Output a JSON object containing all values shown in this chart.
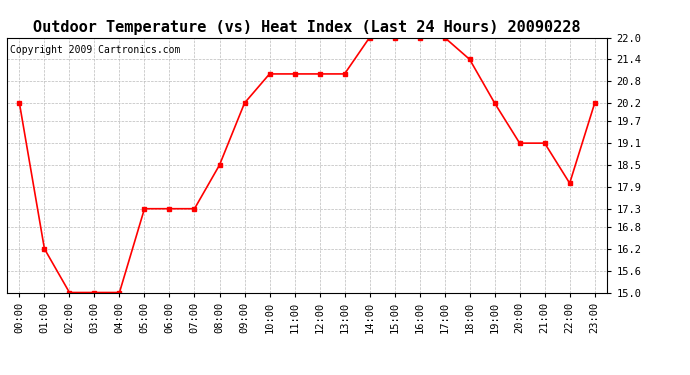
{
  "title": "Outdoor Temperature (vs) Heat Index (Last 24 Hours) 20090228",
  "copyright_text": "Copyright 2009 Cartronics.com",
  "x_labels": [
    "00:00",
    "01:00",
    "02:00",
    "03:00",
    "04:00",
    "05:00",
    "06:00",
    "07:00",
    "08:00",
    "09:00",
    "10:00",
    "11:00",
    "12:00",
    "13:00",
    "14:00",
    "15:00",
    "16:00",
    "17:00",
    "18:00",
    "19:00",
    "20:00",
    "21:00",
    "22:00",
    "23:00"
  ],
  "y_values": [
    20.2,
    16.2,
    15.0,
    15.0,
    15.0,
    17.3,
    17.3,
    17.3,
    18.5,
    20.2,
    21.0,
    21.0,
    21.0,
    21.0,
    22.0,
    22.0,
    22.0,
    22.0,
    21.4,
    20.2,
    19.1,
    19.1,
    18.0,
    20.2
  ],
  "y_min": 15.0,
  "y_max": 22.0,
  "y_ticks": [
    15.0,
    15.6,
    16.2,
    16.8,
    17.3,
    17.9,
    18.5,
    19.1,
    19.7,
    20.2,
    20.8,
    21.4,
    22.0
  ],
  "line_color": "red",
  "marker": "s",
  "marker_size": 3,
  "background_color": "white",
  "grid_color": "#bbbbbb",
  "title_fontsize": 11,
  "tick_fontsize": 7.5,
  "copyright_fontsize": 7
}
